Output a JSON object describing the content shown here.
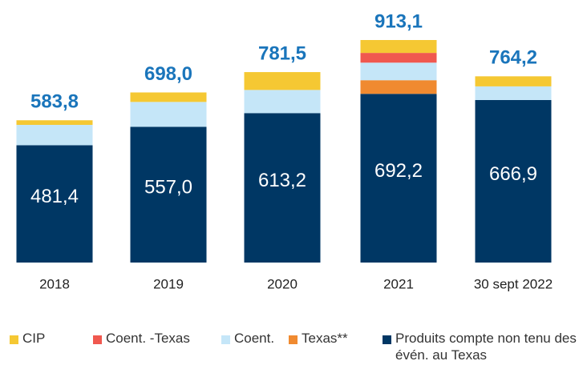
{
  "chart_data": {
    "type": "stacked_bar",
    "categories": [
      "2018",
      "2019",
      "2020",
      "2021",
      "30 sept 2022"
    ],
    "series": [
      {
        "name": "CIP",
        "color": "#f5c833",
        "values": [
          18.9,
          39.0,
          73.3,
          52.9,
          41.3
        ]
      },
      {
        "name": "Coent. -Texas",
        "color": "#f0584f",
        "values": [
          null,
          null,
          null,
          40.0,
          null
        ]
      },
      {
        "name": "Coent.",
        "color": "#c5e6f8",
        "values": [
          83.5,
          102.0,
          95.0,
          72.0,
          56.0
        ]
      },
      {
        "name": "Texas**",
        "color": "#f08a30",
        "values": [
          null,
          null,
          null,
          56.0,
          null
        ]
      },
      {
        "name": "Produits compte non tenu des évén. au Texas",
        "color": "#003764",
        "values": [
          481.4,
          557.0,
          613.2,
          692.2,
          666.9
        ],
        "value_labels": [
          "481,4",
          "557,0",
          "613,2",
          "692,2",
          "666,9"
        ]
      }
    ],
    "totals": [
      583.8,
      698.0,
      781.5,
      913.1,
      764.2
    ],
    "total_labels": [
      "583,8",
      "698,0",
      "781,5",
      "913,1",
      "764,2"
    ],
    "total_color": "#1a75bb"
  }
}
